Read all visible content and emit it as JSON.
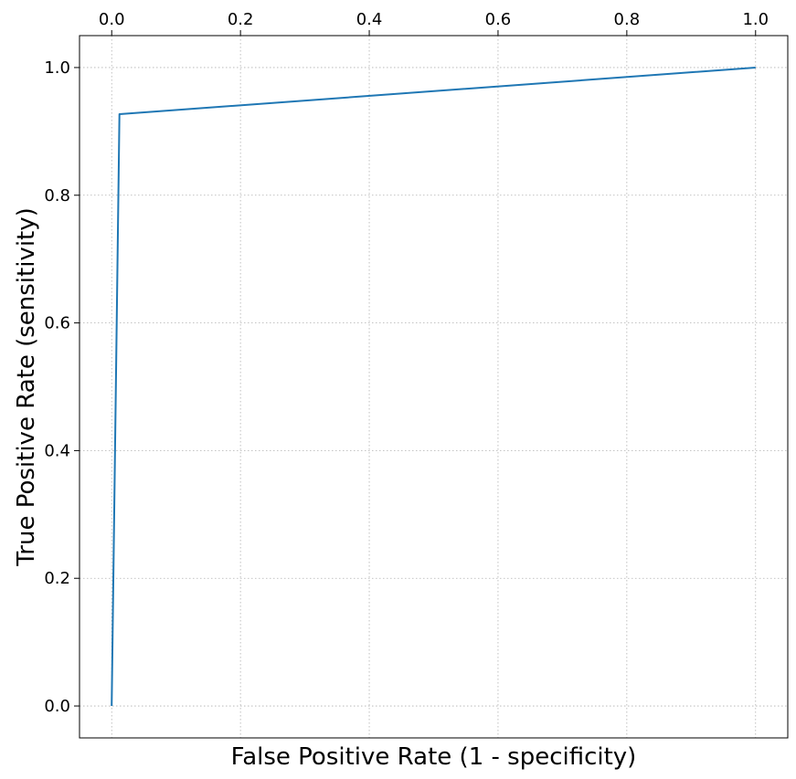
{
  "chart_data": {
    "type": "line",
    "title": "",
    "xlabel": "False Positive Rate (1 - specificity)",
    "ylabel": "True Positive Rate (sensitivity)",
    "xlim": [
      -0.05,
      1.05
    ],
    "ylim": [
      -0.05,
      1.05
    ],
    "x_ticks": [
      0.0,
      0.2,
      0.4,
      0.6,
      0.8,
      1.0
    ],
    "x_tick_labels": [
      "0.0",
      "0.2",
      "0.4",
      "0.6",
      "0.8",
      "1.0"
    ],
    "x_tick_position": "top",
    "y_ticks": [
      0.0,
      0.2,
      0.4,
      0.6,
      0.8,
      1.0
    ],
    "y_tick_labels": [
      "0.0",
      "0.2",
      "0.4",
      "0.6",
      "0.8",
      "1.0"
    ],
    "grid": true,
    "grid_style": "dotted",
    "legend": "none",
    "series": [
      {
        "color": "#1f77b4",
        "x": [
          0.0,
          0.012,
          1.0
        ],
        "y": [
          0.0,
          0.927,
          1.0
        ]
      }
    ]
  }
}
